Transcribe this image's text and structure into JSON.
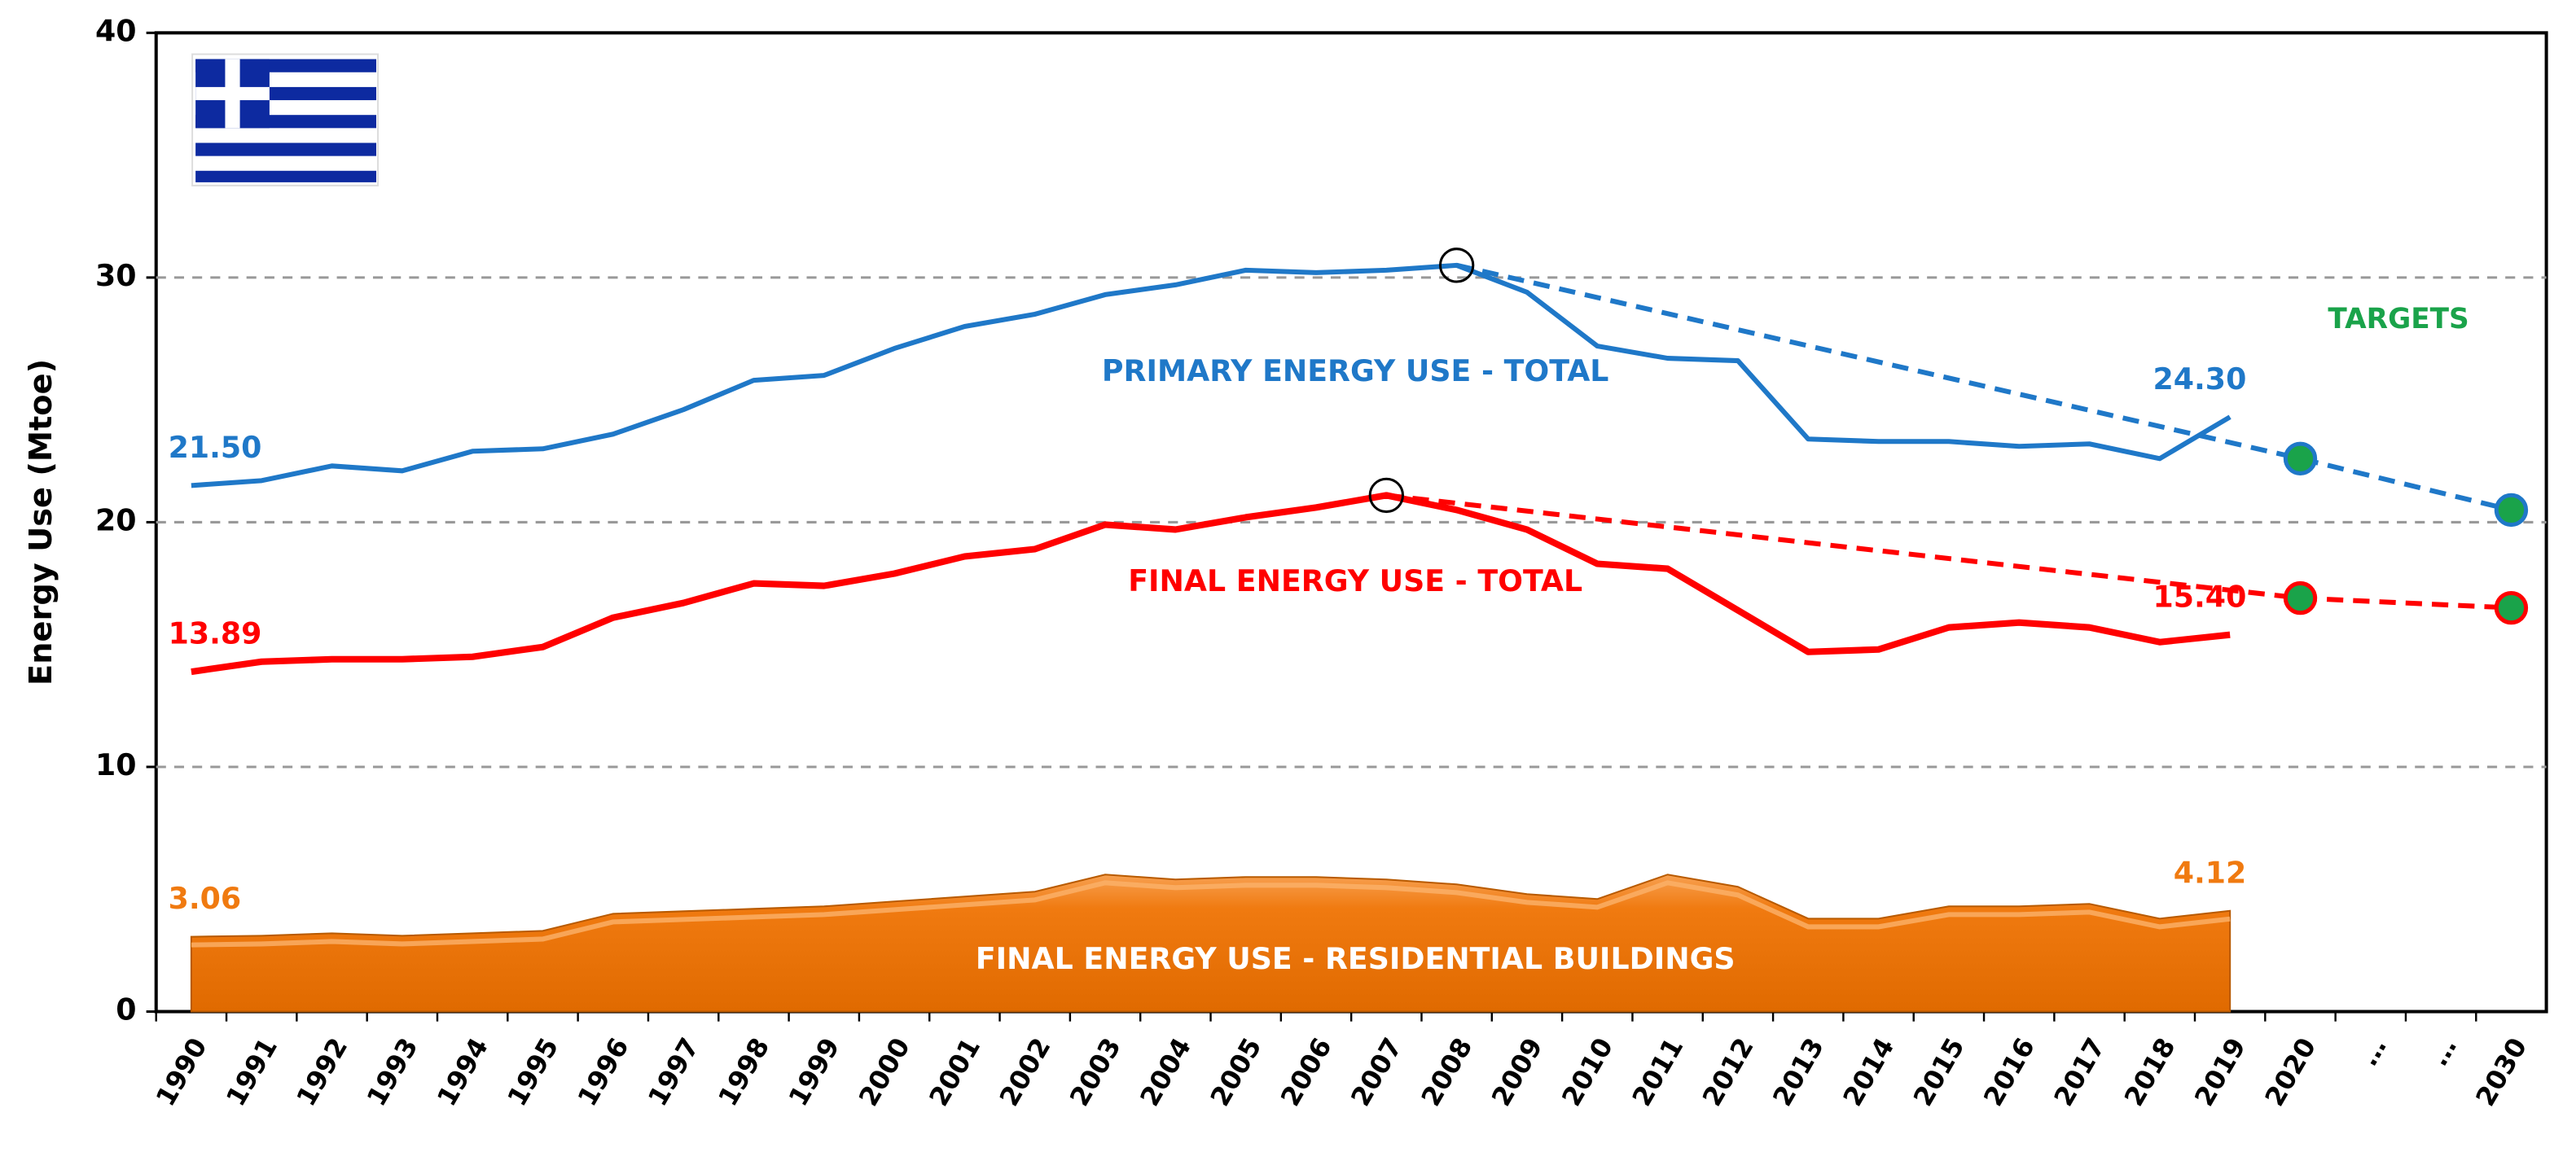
{
  "chart_data": {
    "type": "line",
    "ylabel": "Energy Use (Mtoe)",
    "categories": [
      "1990",
      "1991",
      "1992",
      "1993",
      "1994",
      "1995",
      "1996",
      "1997",
      "1998",
      "1999",
      "2000",
      "2001",
      "2002",
      "2003",
      "2004",
      "2005",
      "2006",
      "2007",
      "2008",
      "2009",
      "2010",
      "2011",
      "2012",
      "2013",
      "2014",
      "2015",
      "2016",
      "2017",
      "2018",
      "2019",
      "2020",
      "…",
      "…",
      "2030"
    ],
    "ylim": [
      0,
      40
    ],
    "yticks": [
      0,
      10,
      20,
      30,
      40
    ],
    "grid": true,
    "targets_label": "TARGETS",
    "targets_color": "#1aa34a",
    "series": [
      {
        "name": "PRIMARY ENERGY USE - TOTAL",
        "color": "#1f78c8",
        "kind": "line",
        "values": [
          21.5,
          21.7,
          22.3,
          22.1,
          22.9,
          23.0,
          23.6,
          24.6,
          25.8,
          26.0,
          27.1,
          28.0,
          28.5,
          29.3,
          29.7,
          30.3,
          30.2,
          30.3,
          30.5,
          29.4,
          27.2,
          26.7,
          26.6,
          23.4,
          23.3,
          23.3,
          23.1,
          23.2,
          22.6,
          24.3,
          null,
          null,
          null,
          null
        ],
        "value_labels": [
          "21.50",
          null,
          null,
          null,
          null,
          null,
          null,
          null,
          null,
          null,
          null,
          null,
          null,
          null,
          null,
          null,
          null,
          null,
          null,
          null,
          null,
          null,
          null,
          null,
          null,
          null,
          null,
          null,
          null,
          "24.30",
          null,
          null,
          null,
          null
        ],
        "target_values": [
          null,
          null,
          null,
          null,
          null,
          null,
          null,
          null,
          null,
          null,
          null,
          null,
          null,
          null,
          null,
          null,
          null,
          null,
          null,
          null,
          null,
          null,
          null,
          null,
          null,
          null,
          null,
          null,
          null,
          null,
          22.6,
          null,
          null,
          20.5
        ]
      },
      {
        "name": "FINAL ENERGY USE - TOTAL",
        "color": "#ff0000",
        "kind": "line",
        "values": [
          13.89,
          14.3,
          14.4,
          14.4,
          14.5,
          14.9,
          16.1,
          16.7,
          17.5,
          17.4,
          17.9,
          18.6,
          18.9,
          19.9,
          19.7,
          20.2,
          20.6,
          21.1,
          20.5,
          19.7,
          18.3,
          18.1,
          16.4,
          14.7,
          14.8,
          15.7,
          15.9,
          15.7,
          15.1,
          15.4,
          null,
          null,
          null,
          null
        ],
        "value_labels": [
          "13.89",
          null,
          null,
          null,
          null,
          null,
          null,
          null,
          null,
          null,
          null,
          null,
          null,
          null,
          null,
          null,
          null,
          null,
          null,
          null,
          null,
          null,
          null,
          null,
          null,
          null,
          null,
          null,
          null,
          "15.40",
          null,
          null,
          null,
          null
        ],
        "target_values": [
          null,
          null,
          null,
          null,
          null,
          null,
          null,
          null,
          null,
          null,
          null,
          null,
          null,
          null,
          null,
          null,
          null,
          null,
          null,
          null,
          null,
          null,
          null,
          null,
          null,
          null,
          null,
          null,
          null,
          null,
          16.9,
          null,
          null,
          16.5
        ]
      },
      {
        "name": "FINAL ENERGY USE - RESIDENTIAL BUILDINGS",
        "color": "#f07a10",
        "kind": "area",
        "values": [
          3.06,
          3.1,
          3.2,
          3.1,
          3.2,
          3.3,
          4.0,
          4.1,
          4.2,
          4.3,
          4.5,
          4.7,
          4.9,
          5.6,
          5.4,
          5.5,
          5.5,
          5.4,
          5.2,
          4.8,
          4.6,
          5.6,
          5.1,
          3.8,
          3.8,
          4.3,
          4.3,
          4.4,
          3.8,
          4.12,
          null,
          null,
          null,
          null
        ],
        "value_labels": [
          "3.06",
          null,
          null,
          null,
          null,
          null,
          null,
          null,
          null,
          null,
          null,
          null,
          null,
          null,
          null,
          null,
          null,
          null,
          null,
          null,
          null,
          null,
          null,
          null,
          null,
          null,
          null,
          null,
          null,
          "4.12",
          null,
          null,
          null,
          null
        ]
      }
    ]
  }
}
